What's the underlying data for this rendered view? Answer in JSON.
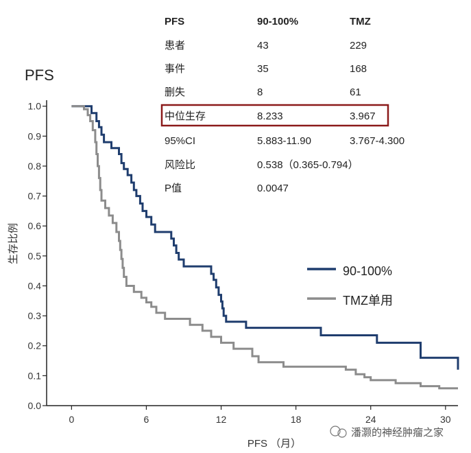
{
  "watermark": "潘灏的神经肿瘤之家",
  "table": {
    "header": [
      "PFS",
      "90-100%",
      "TMZ"
    ],
    "rows": [
      [
        "患者",
        "43",
        "229"
      ],
      [
        "事件",
        "35",
        "168"
      ],
      [
        "删失",
        "8",
        "61"
      ],
      [
        "中位生存",
        "8.233",
        "3.967"
      ],
      [
        "95%CI",
        "5.883-11.90",
        "3.767-4.300"
      ],
      [
        "风险比",
        "0.538（0.365-0.794）",
        ""
      ],
      [
        "P值",
        "0.0047",
        ""
      ]
    ],
    "highlight_row": 3,
    "highlight_color": "#8b1a1a"
  },
  "chart_data": {
    "type": "line",
    "subtype": "kaplan-meier step",
    "title": "PFS",
    "xlabel": "PFS （月）",
    "ylabel": "生存比例",
    "xlim": [
      -2,
      31
    ],
    "ylim": [
      0,
      1.02
    ],
    "xticks": [
      0,
      6,
      12,
      18,
      24,
      30
    ],
    "xtick_labels": [
      "0",
      "6",
      "12",
      "18",
      "24",
      "30"
    ],
    "yticks": [
      0,
      0.1,
      0.2,
      0.3,
      0.4,
      0.5,
      0.6,
      0.7,
      0.8,
      0.9,
      1.0
    ],
    "ytick_labels": [
      "0.0",
      "0.1",
      "0.2",
      "0.3",
      "0.4",
      "0.5",
      "0.6",
      "0.7",
      "0.8",
      "0.9",
      "1.0"
    ],
    "legend_position": "right-middle",
    "series": [
      {
        "name": "90-100%",
        "color": "#1f3d6e",
        "points": [
          [
            0,
            1.0
          ],
          [
            1.6,
            1.0
          ],
          [
            1.6,
            0.977
          ],
          [
            2.0,
            0.977
          ],
          [
            2.0,
            0.95
          ],
          [
            2.2,
            0.95
          ],
          [
            2.2,
            0.93
          ],
          [
            2.4,
            0.93
          ],
          [
            2.4,
            0.905
          ],
          [
            2.6,
            0.905
          ],
          [
            2.6,
            0.88
          ],
          [
            3.2,
            0.88
          ],
          [
            3.2,
            0.86
          ],
          [
            3.8,
            0.86
          ],
          [
            3.8,
            0.84
          ],
          [
            4.0,
            0.84
          ],
          [
            4.0,
            0.81
          ],
          [
            4.2,
            0.81
          ],
          [
            4.2,
            0.79
          ],
          [
            4.5,
            0.79
          ],
          [
            4.5,
            0.77
          ],
          [
            4.8,
            0.77
          ],
          [
            4.8,
            0.745
          ],
          [
            5.0,
            0.745
          ],
          [
            5.0,
            0.72
          ],
          [
            5.2,
            0.72
          ],
          [
            5.2,
            0.7
          ],
          [
            5.5,
            0.7
          ],
          [
            5.5,
            0.675
          ],
          [
            5.7,
            0.675
          ],
          [
            5.7,
            0.65
          ],
          [
            6.0,
            0.65
          ],
          [
            6.0,
            0.63
          ],
          [
            6.4,
            0.63
          ],
          [
            6.4,
            0.605
          ],
          [
            6.7,
            0.605
          ],
          [
            6.7,
            0.58
          ],
          [
            8.0,
            0.58
          ],
          [
            8.0,
            0.558
          ],
          [
            8.2,
            0.558
          ],
          [
            8.2,
            0.535
          ],
          [
            8.4,
            0.535
          ],
          [
            8.4,
            0.51
          ],
          [
            8.6,
            0.51
          ],
          [
            8.6,
            0.488
          ],
          [
            9.0,
            0.488
          ],
          [
            9.0,
            0.465
          ],
          [
            11.2,
            0.465
          ],
          [
            11.2,
            0.44
          ],
          [
            11.4,
            0.44
          ],
          [
            11.4,
            0.42
          ],
          [
            11.6,
            0.42
          ],
          [
            11.6,
            0.395
          ],
          [
            11.8,
            0.395
          ],
          [
            11.8,
            0.37
          ],
          [
            12.0,
            0.37
          ],
          [
            12.0,
            0.348
          ],
          [
            12.1,
            0.348
          ],
          [
            12.1,
            0.325
          ],
          [
            12.2,
            0.325
          ],
          [
            12.2,
            0.3
          ],
          [
            12.4,
            0.3
          ],
          [
            12.4,
            0.28
          ],
          [
            14.0,
            0.28
          ],
          [
            14.0,
            0.26
          ],
          [
            20.0,
            0.26
          ],
          [
            20.0,
            0.235
          ],
          [
            24.5,
            0.235
          ],
          [
            24.5,
            0.21
          ],
          [
            28.0,
            0.21
          ],
          [
            28.0,
            0.16
          ],
          [
            31.0,
            0.16
          ],
          [
            31.0,
            0.12
          ]
        ]
      },
      {
        "name": "TMZ单用",
        "color": "#8c8c8c",
        "points": [
          [
            0,
            1.0
          ],
          [
            1.0,
            1.0
          ],
          [
            1.0,
            0.99
          ],
          [
            1.3,
            0.99
          ],
          [
            1.3,
            0.97
          ],
          [
            1.5,
            0.97
          ],
          [
            1.5,
            0.95
          ],
          [
            1.7,
            0.95
          ],
          [
            1.7,
            0.92
          ],
          [
            1.9,
            0.92
          ],
          [
            1.9,
            0.88
          ],
          [
            2.0,
            0.88
          ],
          [
            2.0,
            0.84
          ],
          [
            2.1,
            0.84
          ],
          [
            2.1,
            0.8
          ],
          [
            2.2,
            0.8
          ],
          [
            2.2,
            0.76
          ],
          [
            2.3,
            0.76
          ],
          [
            2.3,
            0.72
          ],
          [
            2.4,
            0.72
          ],
          [
            2.4,
            0.685
          ],
          [
            2.7,
            0.685
          ],
          [
            2.7,
            0.66
          ],
          [
            3.0,
            0.66
          ],
          [
            3.0,
            0.635
          ],
          [
            3.3,
            0.635
          ],
          [
            3.3,
            0.61
          ],
          [
            3.6,
            0.61
          ],
          [
            3.6,
            0.58
          ],
          [
            3.8,
            0.58
          ],
          [
            3.8,
            0.55
          ],
          [
            3.9,
            0.55
          ],
          [
            3.9,
            0.52
          ],
          [
            4.0,
            0.52
          ],
          [
            4.0,
            0.49
          ],
          [
            4.1,
            0.49
          ],
          [
            4.1,
            0.46
          ],
          [
            4.2,
            0.46
          ],
          [
            4.2,
            0.43
          ],
          [
            4.4,
            0.43
          ],
          [
            4.4,
            0.4
          ],
          [
            5.0,
            0.4
          ],
          [
            5.0,
            0.38
          ],
          [
            5.6,
            0.38
          ],
          [
            5.6,
            0.36
          ],
          [
            6.0,
            0.36
          ],
          [
            6.0,
            0.345
          ],
          [
            6.4,
            0.345
          ],
          [
            6.4,
            0.33
          ],
          [
            6.8,
            0.33
          ],
          [
            6.8,
            0.31
          ],
          [
            7.5,
            0.31
          ],
          [
            7.5,
            0.29
          ],
          [
            9.5,
            0.29
          ],
          [
            9.5,
            0.27
          ],
          [
            10.5,
            0.27
          ],
          [
            10.5,
            0.25
          ],
          [
            11.2,
            0.25
          ],
          [
            11.2,
            0.23
          ],
          [
            12.0,
            0.23
          ],
          [
            12.0,
            0.21
          ],
          [
            13.0,
            0.21
          ],
          [
            13.0,
            0.19
          ],
          [
            14.5,
            0.19
          ],
          [
            14.5,
            0.165
          ],
          [
            15.0,
            0.165
          ],
          [
            15.0,
            0.145
          ],
          [
            17.0,
            0.145
          ],
          [
            17.0,
            0.13
          ],
          [
            22.0,
            0.13
          ],
          [
            22.0,
            0.12
          ],
          [
            22.8,
            0.12
          ],
          [
            22.8,
            0.105
          ],
          [
            23.5,
            0.105
          ],
          [
            23.5,
            0.095
          ],
          [
            24.0,
            0.095
          ],
          [
            24.0,
            0.085
          ],
          [
            26.0,
            0.085
          ],
          [
            26.0,
            0.075
          ],
          [
            28.0,
            0.075
          ],
          [
            28.0,
            0.065
          ],
          [
            29.5,
            0.065
          ],
          [
            29.5,
            0.058
          ],
          [
            31.0,
            0.058
          ]
        ]
      }
    ]
  }
}
